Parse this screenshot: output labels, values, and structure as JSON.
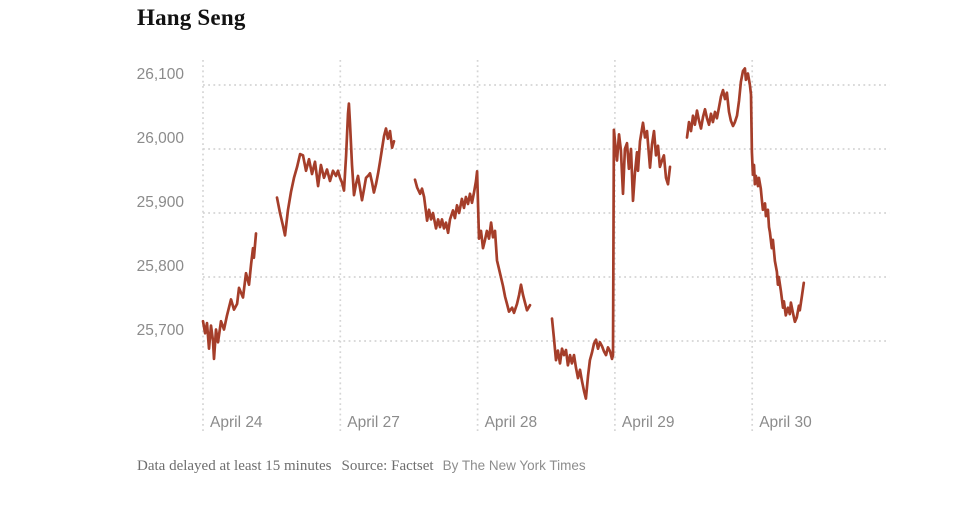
{
  "title": "Hang Seng",
  "footer": {
    "note": "Data delayed at least 15 minutes",
    "source": "Source: Factset",
    "byline": "By The New York Times"
  },
  "colors": {
    "line": "#a53e2a",
    "grid": "#d5d5d5",
    "axis_text": "#8b8b8b",
    "title_text": "#121212"
  },
  "chart_data": {
    "type": "line",
    "title": "Hang Seng",
    "legend": "none",
    "grid": "dotted",
    "gap_note": "line gaps are Hong Kong market lunch breaks; sharp vertical moves occur at daily opens",
    "x_axis": {
      "range_days": [
        0,
        5
      ],
      "ticks": [
        {
          "label": "April 24",
          "day": 0
        },
        {
          "label": "April 27",
          "day": 1
        },
        {
          "label": "April 28",
          "day": 2
        },
        {
          "label": "April 29",
          "day": 3
        },
        {
          "label": "April 30",
          "day": 4
        }
      ]
    },
    "y_axis": {
      "ylim": [
        25600,
        26140
      ],
      "ticks": [
        {
          "label": "26,100",
          "value": 26100
        },
        {
          "label": "26,000",
          "value": 26000
        },
        {
          "label": "25,900",
          "value": 25900
        },
        {
          "label": "25,800",
          "value": 25800
        },
        {
          "label": "25,700",
          "value": 25700
        }
      ]
    },
    "segments": [
      [
        [
          0,
          25731
        ],
        [
          0.015,
          25712
        ],
        [
          0.029,
          25728
        ],
        [
          0.044,
          25688
        ],
        [
          0.058,
          25724
        ],
        [
          0.073,
          25700
        ],
        [
          0.08,
          25672
        ],
        [
          0.095,
          25718
        ],
        [
          0.109,
          25698
        ],
        [
          0.131,
          25731
        ],
        [
          0.153,
          25718
        ],
        [
          0.175,
          25740
        ],
        [
          0.204,
          25765
        ],
        [
          0.226,
          25749
        ],
        [
          0.248,
          25758
        ],
        [
          0.262,
          25783
        ],
        [
          0.291,
          25768
        ],
        [
          0.313,
          25806
        ],
        [
          0.335,
          25788
        ],
        [
          0.35,
          25820
        ],
        [
          0.364,
          25845
        ],
        [
          0.371,
          25830
        ],
        [
          0.386,
          25868
        ]
      ],
      [
        [
          0.539,
          25924
        ],
        [
          0.561,
          25900
        ],
        [
          0.583,
          25880
        ],
        [
          0.597,
          25865
        ],
        [
          0.619,
          25905
        ],
        [
          0.641,
          25933
        ],
        [
          0.663,
          25955
        ],
        [
          0.685,
          25972
        ],
        [
          0.707,
          25992
        ],
        [
          0.728,
          25990
        ],
        [
          0.75,
          25966
        ],
        [
          0.772,
          25984
        ],
        [
          0.794,
          25961
        ],
        [
          0.816,
          25980
        ],
        [
          0.838,
          25942
        ],
        [
          0.859,
          25975
        ],
        [
          0.881,
          25955
        ],
        [
          0.903,
          25968
        ],
        [
          0.925,
          25950
        ],
        [
          0.947,
          25966
        ],
        [
          0.969,
          25958
        ],
        [
          0.983,
          25966
        ],
        [
          0.998,
          25955
        ],
        [
          1.012,
          25948
        ],
        [
          1.027,
          25935
        ],
        [
          1.042,
          25990
        ],
        [
          1.056,
          26055
        ],
        [
          1.063,
          26071
        ],
        [
          1.071,
          26040
        ],
        [
          1.085,
          25975
        ],
        [
          1.1,
          25928
        ],
        [
          1.114,
          25945
        ],
        [
          1.129,
          25958
        ],
        [
          1.143,
          25940
        ],
        [
          1.158,
          25920
        ],
        [
          1.173,
          25938
        ],
        [
          1.187,
          25955
        ],
        [
          1.202,
          25958
        ],
        [
          1.216,
          25962
        ],
        [
          1.231,
          25948
        ],
        [
          1.245,
          25932
        ],
        [
          1.26,
          25945
        ],
        [
          1.275,
          25962
        ],
        [
          1.289,
          25980
        ],
        [
          1.304,
          26000
        ],
        [
          1.318,
          26020
        ],
        [
          1.333,
          26032
        ],
        [
          1.347,
          26016
        ],
        [
          1.362,
          26028
        ],
        [
          1.377,
          26002
        ],
        [
          1.391,
          26012
        ]
      ],
      [
        [
          1.544,
          25952
        ],
        [
          1.559,
          25940
        ],
        [
          1.581,
          25930
        ],
        [
          1.595,
          25938
        ],
        [
          1.61,
          25925
        ],
        [
          1.632,
          25888
        ],
        [
          1.646,
          25905
        ],
        [
          1.661,
          25890
        ],
        [
          1.675,
          25900
        ],
        [
          1.697,
          25876
        ],
        [
          1.712,
          25890
        ],
        [
          1.726,
          25878
        ],
        [
          1.741,
          25890
        ],
        [
          1.755,
          25876
        ],
        [
          1.77,
          25885
        ],
        [
          1.785,
          25869
        ],
        [
          1.799,
          25890
        ],
        [
          1.821,
          25904
        ],
        [
          1.835,
          25892
        ],
        [
          1.85,
          25912
        ],
        [
          1.865,
          25900
        ],
        [
          1.886,
          25922
        ],
        [
          1.901,
          25908
        ],
        [
          1.915,
          25925
        ],
        [
          1.93,
          25914
        ],
        [
          1.945,
          25930
        ],
        [
          1.959,
          25916
        ],
        [
          1.974,
          25932
        ],
        [
          1.988,
          25950
        ],
        [
          1.996,
          25965
        ],
        [
          2.01,
          25860
        ],
        [
          2.025,
          25872
        ],
        [
          2.039,
          25845
        ],
        [
          2.054,
          25858
        ],
        [
          2.068,
          25872
        ],
        [
          2.083,
          25860
        ],
        [
          2.098,
          25885
        ],
        [
          2.112,
          25862
        ],
        [
          2.127,
          25872
        ],
        [
          2.141,
          25826
        ],
        [
          2.163,
          25806
        ],
        [
          2.185,
          25786
        ],
        [
          2.2,
          25769
        ],
        [
          2.214,
          25758
        ],
        [
          2.229,
          25746
        ],
        [
          2.251,
          25752
        ],
        [
          2.265,
          25744
        ],
        [
          2.287,
          25758
        ],
        [
          2.302,
          25772
        ],
        [
          2.316,
          25788
        ],
        [
          2.331,
          25772
        ],
        [
          2.345,
          25760
        ],
        [
          2.36,
          25748
        ],
        [
          2.382,
          25756
        ]
      ],
      [
        [
          2.542,
          25735
        ],
        [
          2.556,
          25705
        ],
        [
          2.571,
          25670
        ],
        [
          2.585,
          25685
        ],
        [
          2.6,
          25665
        ],
        [
          2.615,
          25688
        ],
        [
          2.629,
          25678
        ],
        [
          2.644,
          25686
        ],
        [
          2.658,
          25662
        ],
        [
          2.673,
          25678
        ],
        [
          2.687,
          25665
        ],
        [
          2.702,
          25678
        ],
        [
          2.717,
          25658
        ],
        [
          2.731,
          25642
        ],
        [
          2.746,
          25655
        ],
        [
          2.76,
          25638
        ],
        [
          2.775,
          25622
        ],
        [
          2.789,
          25610
        ],
        [
          2.804,
          25645
        ],
        [
          2.818,
          25670
        ],
        [
          2.833,
          25682
        ],
        [
          2.848,
          25696
        ],
        [
          2.862,
          25702
        ],
        [
          2.877,
          25688
        ],
        [
          2.891,
          25698
        ],
        [
          2.906,
          25692
        ],
        [
          2.92,
          25684
        ],
        [
          2.935,
          25678
        ],
        [
          2.95,
          25690
        ],
        [
          2.964,
          25684
        ],
        [
          2.979,
          25672
        ],
        [
          2.986,
          25678
        ],
        [
          2.993,
          26030
        ],
        [
          3.008,
          25995
        ],
        [
          3.015,
          25982
        ],
        [
          3.03,
          26023
        ],
        [
          3.044,
          25998
        ],
        [
          3.059,
          25930
        ],
        [
          3.073,
          26000
        ],
        [
          3.088,
          26009
        ],
        [
          3.102,
          25969
        ],
        [
          3.117,
          26000
        ],
        [
          3.132,
          25919
        ],
        [
          3.146,
          25962
        ],
        [
          3.161,
          25995
        ],
        [
          3.168,
          25966
        ],
        [
          3.183,
          26012
        ],
        [
          3.205,
          26041
        ],
        [
          3.219,
          26018
        ],
        [
          3.234,
          26028
        ],
        [
          3.256,
          25971
        ],
        [
          3.27,
          26007
        ],
        [
          3.285,
          26028
        ],
        [
          3.299,
          25990
        ],
        [
          3.314,
          26005
        ],
        [
          3.328,
          25972
        ],
        [
          3.343,
          25982
        ],
        [
          3.357,
          25990
        ],
        [
          3.372,
          25955
        ],
        [
          3.387,
          25945
        ],
        [
          3.401,
          25972
        ]
      ],
      [
        [
          3.525,
          26018
        ],
        [
          3.54,
          26042
        ],
        [
          3.554,
          26028
        ],
        [
          3.569,
          26052
        ],
        [
          3.583,
          26038
        ],
        [
          3.598,
          26060
        ],
        [
          3.612,
          26045
        ],
        [
          3.627,
          26032
        ],
        [
          3.642,
          26050
        ],
        [
          3.656,
          26062
        ],
        [
          3.671,
          26048
        ],
        [
          3.685,
          26038
        ],
        [
          3.7,
          26055
        ],
        [
          3.714,
          26042
        ],
        [
          3.729,
          26058
        ],
        [
          3.743,
          26048
        ],
        [
          3.758,
          26065
        ],
        [
          3.773,
          26082
        ],
        [
          3.787,
          26092
        ],
        [
          3.802,
          26078
        ],
        [
          3.816,
          26088
        ],
        [
          3.831,
          26058
        ],
        [
          3.845,
          26044
        ],
        [
          3.86,
          26036
        ],
        [
          3.874,
          26042
        ],
        [
          3.889,
          26052
        ],
        [
          3.904,
          26075
        ],
        [
          3.918,
          26105
        ],
        [
          3.933,
          26122
        ],
        [
          3.947,
          26126
        ],
        [
          3.954,
          26108
        ],
        [
          3.969,
          26118
        ],
        [
          3.983,
          26100
        ],
        [
          3.991,
          26085
        ],
        [
          3.998,
          25995
        ],
        [
          4.005,
          25960
        ],
        [
          4.013,
          25975
        ],
        [
          4.02,
          25945
        ],
        [
          4.027,
          25958
        ],
        [
          4.042,
          25942
        ],
        [
          4.049,
          25955
        ],
        [
          4.063,
          25938
        ],
        [
          4.071,
          25920
        ],
        [
          4.078,
          25905
        ],
        [
          4.093,
          25915
        ],
        [
          4.1,
          25895
        ],
        [
          4.114,
          25905
        ],
        [
          4.122,
          25878
        ],
        [
          4.129,
          25870
        ],
        [
          4.143,
          25845
        ],
        [
          4.151,
          25858
        ],
        [
          4.165,
          25825
        ],
        [
          4.18,
          25808
        ],
        [
          4.187,
          25788
        ],
        [
          4.194,
          25800
        ],
        [
          4.209,
          25778
        ],
        [
          4.224,
          25752
        ],
        [
          4.231,
          25762
        ],
        [
          4.245,
          25740
        ],
        [
          4.26,
          25752
        ],
        [
          4.274,
          25742
        ],
        [
          4.282,
          25760
        ],
        [
          4.296,
          25745
        ],
        [
          4.311,
          25730
        ],
        [
          4.325,
          25737
        ],
        [
          4.34,
          25755
        ],
        [
          4.347,
          25748
        ],
        [
          4.362,
          25770
        ],
        [
          4.376,
          25791
        ]
      ]
    ]
  }
}
